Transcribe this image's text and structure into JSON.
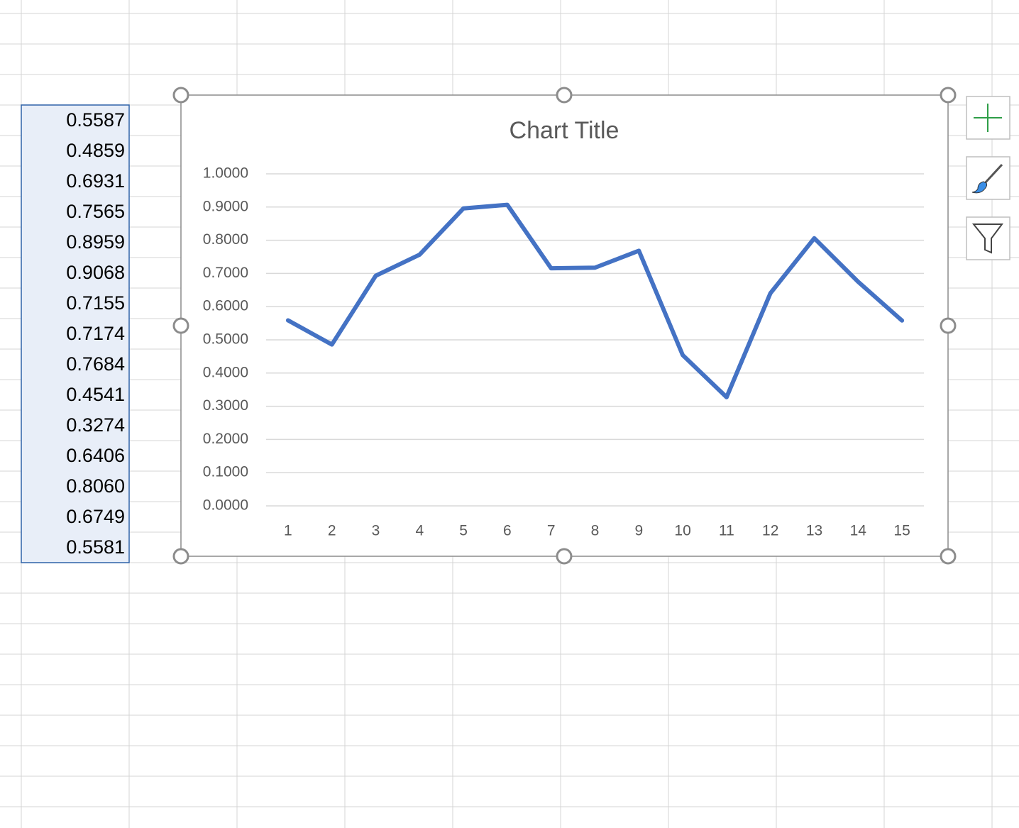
{
  "cells": [
    "0.5587",
    "0.4859",
    "0.6931",
    "0.7565",
    "0.8959",
    "0.9068",
    "0.7155",
    "0.7174",
    "0.7684",
    "0.4541",
    "0.3274",
    "0.6406",
    "0.8060",
    "0.6749",
    "0.5581"
  ],
  "chart_data": {
    "type": "line",
    "title": "Chart Title",
    "categories": [
      1,
      2,
      3,
      4,
      5,
      6,
      7,
      8,
      9,
      10,
      11,
      12,
      13,
      14,
      15
    ],
    "values": [
      0.5587,
      0.4859,
      0.6931,
      0.7565,
      0.8959,
      0.9068,
      0.7155,
      0.7174,
      0.7684,
      0.4541,
      0.3274,
      0.6406,
      0.806,
      0.6749,
      0.5581
    ],
    "color": "#4472c4",
    "ylim": [
      0,
      1
    ],
    "yticks": [
      {
        "value": 0,
        "label": "0.0000"
      },
      {
        "value": 0.1,
        "label": "0.1000"
      },
      {
        "value": 0.2,
        "label": "0.2000"
      },
      {
        "value": 0.3,
        "label": "0.3000"
      },
      {
        "value": 0.4,
        "label": "0.4000"
      },
      {
        "value": 0.5,
        "label": "0.5000"
      },
      {
        "value": 0.6,
        "label": "0.6000"
      },
      {
        "value": 0.7,
        "label": "0.7000"
      },
      {
        "value": 0.8,
        "label": "0.8000"
      },
      {
        "value": 0.9,
        "label": "0.9000"
      },
      {
        "value": 1,
        "label": "1.0000"
      }
    ],
    "grid": true
  }
}
